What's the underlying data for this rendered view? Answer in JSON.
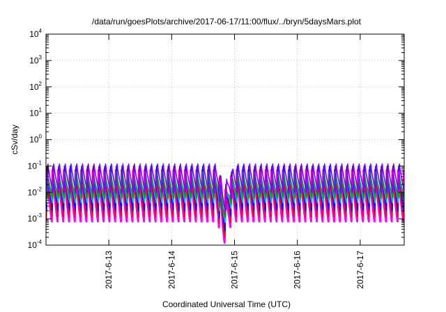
{
  "chart_data": {
    "type": "line",
    "title": "/data/run/goesPlots/archive/2017-06-17/11:00/flux/../bryn/5daysMars.plot",
    "xlabel": "Coordinated Universal Time (UTC)",
    "ylabel": "cSv/day",
    "x_tick_labels": [
      "2017-6-13",
      "2017-6-14",
      "2017-6-15",
      "2017-6-16",
      "2017-6-17"
    ],
    "x_tick_day_offsets": [
      1,
      2,
      3,
      4,
      5
    ],
    "xlim_days": [
      0.0,
      5.7
    ],
    "yscale": "log",
    "ylim": [
      0.0001,
      10000
    ],
    "y_tick_labels": [
      {
        "base": "10",
        "exp": "-4"
      },
      {
        "base": "10",
        "exp": "-3"
      },
      {
        "base": "10",
        "exp": "-2"
      },
      {
        "base": "10",
        "exp": "-1"
      },
      {
        "base": "10",
        "exp": "0"
      },
      {
        "base": "10",
        "exp": "1"
      },
      {
        "base": "10",
        "exp": "2"
      },
      {
        "base": "10",
        "exp": "3"
      },
      {
        "base": "10",
        "exp": "4"
      }
    ],
    "grid": true,
    "legend": "none",
    "period_days": 0.0917,
    "dip": {
      "start_day": 2.75,
      "end_day": 2.97
    },
    "series": [
      {
        "color": "#ff00ff",
        "peak": 0.07,
        "trough": 0.0008
      },
      {
        "color": "#ff0000",
        "peak": 0.085,
        "trough": 0.0012
      },
      {
        "color": "#0000ff",
        "peak": 0.1,
        "trough": 0.002
      },
      {
        "color": "#00c0c0",
        "peak": 0.06,
        "trough": 0.004
      },
      {
        "color": "#00a000",
        "peak": 0.05,
        "trough": 0.006
      },
      {
        "color": "#8000ff",
        "peak": 0.12,
        "trough": 0.01
      }
    ]
  }
}
